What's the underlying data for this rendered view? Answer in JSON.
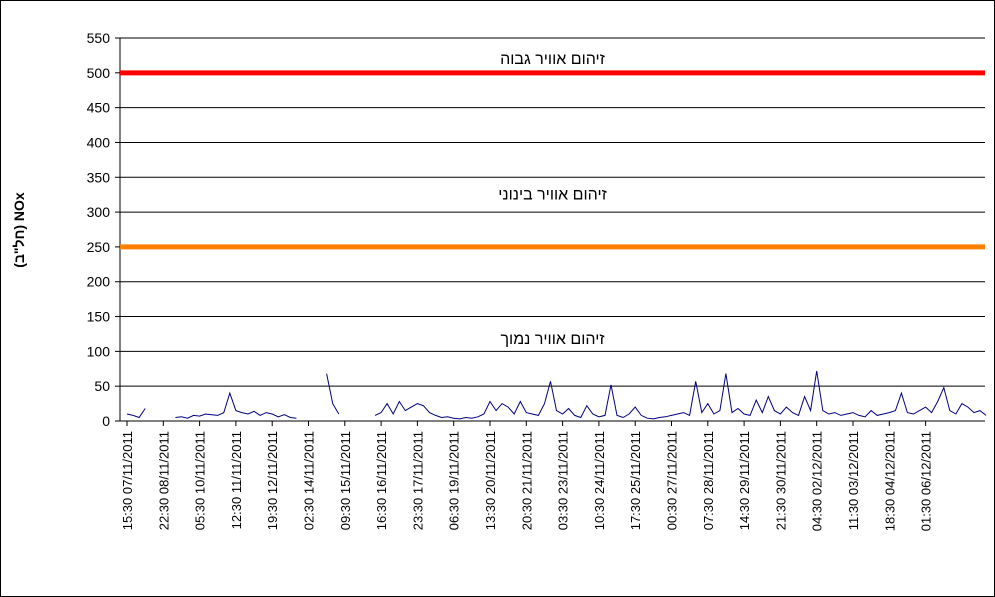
{
  "chart_data": {
    "type": "line",
    "ylabel": "NOx (חל\"ב)",
    "ylim": [
      0,
      550
    ],
    "yticks": [
      0,
      50,
      100,
      150,
      200,
      250,
      300,
      350,
      400,
      450,
      500,
      550
    ],
    "grid": true,
    "thresholds": [
      {
        "value": 500,
        "color": "#ff0000"
      },
      {
        "value": 250,
        "color": "#ff8000"
      }
    ],
    "annotations": [
      {
        "text": "זיהום אוויר גבוה",
        "y": 520
      },
      {
        "text": "זיהום אוויר בינוני",
        "y": 325
      },
      {
        "text": "זיהום אוויר נמוך",
        "y": 118
      }
    ],
    "categories": [
      "15:30 07/11/2011",
      null,
      null,
      null,
      null,
      null,
      "22:30 08/11/2011",
      null,
      null,
      null,
      null,
      null,
      "05:30 10/11/2011",
      null,
      null,
      null,
      null,
      null,
      "12:30 11/11/2011",
      null,
      null,
      null,
      null,
      null,
      "19:30 12/11/2011",
      null,
      null,
      null,
      null,
      null,
      "02:30 14/11/2011",
      null,
      null,
      null,
      null,
      null,
      "09:30 15/11/2011",
      null,
      null,
      null,
      null,
      null,
      "16:30 16/11/2011",
      null,
      null,
      null,
      null,
      null,
      "23:30 17/11/2011",
      null,
      null,
      null,
      null,
      null,
      "06:30 19/11/2011",
      null,
      null,
      null,
      null,
      null,
      "13:30 20/11/2011",
      null,
      null,
      null,
      null,
      null,
      "20:30 21/11/2011",
      null,
      null,
      null,
      null,
      null,
      "03:30 23/11/2011",
      null,
      null,
      null,
      null,
      null,
      "10:30 24/11/2011",
      null,
      null,
      null,
      null,
      null,
      "17:30 25/11/2011",
      null,
      null,
      null,
      null,
      null,
      "00:30 27/11/2011",
      null,
      null,
      null,
      null,
      null,
      "07:30 28/11/2011",
      null,
      null,
      null,
      null,
      null,
      "14:30 29/11/2011",
      null,
      null,
      null,
      null,
      null,
      "21:30 30/11/2011",
      null,
      null,
      null,
      null,
      null,
      "04:30 02/12/2011",
      null,
      null,
      null,
      null,
      null,
      "11:30 03/12/2011",
      null,
      null,
      null,
      null,
      null,
      "18:30 04/12/2011",
      null,
      null,
      null,
      null,
      null,
      "01:30 06/12/2011",
      null,
      null,
      null,
      null,
      null,
      null,
      null,
      null,
      null,
      null
    ],
    "series": [
      {
        "color": "#000080",
        "values": [
          10,
          8,
          5,
          18,
          null,
          null,
          null,
          null,
          5,
          6,
          4,
          8,
          7,
          10,
          9,
          8,
          12,
          40,
          15,
          12,
          10,
          14,
          8,
          12,
          10,
          6,
          9,
          5,
          4,
          null,
          null,
          null,
          null,
          68,
          25,
          10,
          null,
          null,
          null,
          null,
          null,
          8,
          12,
          25,
          10,
          28,
          15,
          20,
          25,
          22,
          12,
          8,
          5,
          6,
          4,
          3,
          5,
          4,
          6,
          10,
          28,
          15,
          25,
          20,
          10,
          28,
          12,
          10,
          8,
          25,
          57,
          15,
          10,
          18,
          8,
          5,
          22,
          10,
          6,
          8,
          52,
          8,
          5,
          10,
          20,
          8,
          4,
          3,
          5,
          6,
          8,
          10,
          12,
          8,
          57,
          12,
          25,
          10,
          15,
          68,
          12,
          18,
          10,
          8,
          30,
          12,
          35,
          15,
          10,
          20,
          12,
          8,
          35,
          15,
          72,
          15,
          10,
          12,
          8,
          10,
          12,
          8,
          6,
          15,
          8,
          10,
          12,
          15,
          40,
          12,
          10,
          15,
          20,
          12,
          28,
          48,
          15,
          10,
          25,
          20,
          12,
          15,
          8
        ]
      }
    ]
  }
}
